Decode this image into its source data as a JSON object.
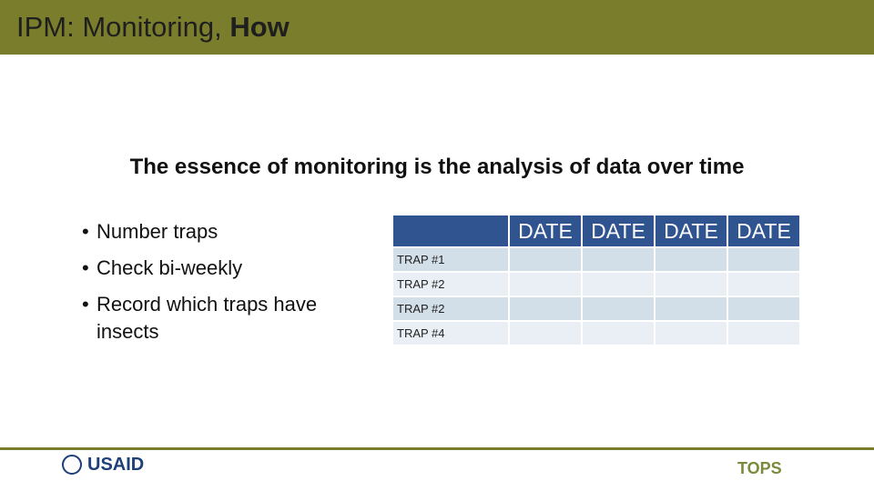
{
  "header": {
    "title": "IPM: Monitoring, ",
    "title_bold": "How"
  },
  "subtitle": "The essence of monitoring is the analysis of data over time",
  "bullets": [
    "Number traps",
    "Check bi-weekly",
    "Record which traps have insects"
  ],
  "table": {
    "columns": [
      "DATE",
      "DATE",
      "DATE",
      "DATE"
    ],
    "rows": [
      "TRAP #1",
      "TRAP #2",
      "TRAP #2",
      "TRAP #4"
    ]
  },
  "logos": {
    "left": "USAID",
    "right": "TOPS"
  }
}
